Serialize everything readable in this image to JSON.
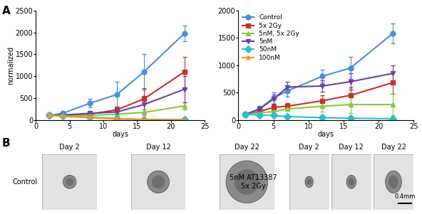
{
  "chart_data": [
    {
      "type": "line",
      "xlabel": "days",
      "ylabel": "normalized",
      "xlim": [
        0,
        25
      ],
      "xticks": [
        0,
        5,
        10,
        15,
        20,
        25
      ],
      "ylim": [
        0,
        2500
      ],
      "yticks": [
        0,
        500,
        1000,
        1500,
        2000,
        2500
      ],
      "series": [
        {
          "name": "Control",
          "color": "#4a90d9",
          "marker": "circle",
          "x": [
            2,
            4,
            8,
            12,
            16,
            22
          ],
          "values": [
            100,
            150,
            380,
            580,
            1100,
            1980
          ],
          "errors": [
            20,
            40,
            100,
            300,
            400,
            180
          ]
        },
        {
          "name": "5x 2Gy",
          "color": "#c9302c",
          "marker": "square",
          "x": [
            2,
            4,
            8,
            12,
            16,
            22
          ],
          "values": [
            100,
            110,
            130,
            230,
            480,
            1100
          ],
          "errors": [
            10,
            20,
            30,
            80,
            250,
            350
          ]
        },
        {
          "name": "5nM, 5x 2Gy",
          "color": "#8cc63f",
          "marker": "triangle_up",
          "x": [
            2,
            4,
            8,
            12,
            16,
            22
          ],
          "values": [
            100,
            100,
            100,
            130,
            170,
            320
          ],
          "errors": [
            10,
            15,
            20,
            30,
            60,
            80
          ]
        },
        {
          "name": "5nM",
          "color": "#6a3fa0",
          "marker": "triangle_down",
          "x": [
            2,
            4,
            8,
            12,
            16,
            22
          ],
          "values": [
            100,
            110,
            150,
            180,
            350,
            700
          ],
          "errors": [
            10,
            20,
            40,
            60,
            200,
            300
          ]
        },
        {
          "name": "50nM",
          "color": "#2bbfd0",
          "marker": "diamond",
          "x": [
            2,
            4,
            8,
            12,
            16,
            22
          ],
          "values": [
            100,
            90,
            60,
            30,
            10,
            5
          ],
          "errors": [
            10,
            10,
            10,
            10,
            5,
            5
          ]
        },
        {
          "name": "100nM",
          "color": "#f7941d",
          "marker": "star",
          "x": [
            2,
            4,
            8,
            12,
            16,
            22
          ],
          "values": [
            100,
            80,
            50,
            20,
            5,
            0
          ],
          "errors": [
            10,
            10,
            10,
            5,
            5,
            0
          ]
        }
      ]
    },
    {
      "type": "line",
      "xlabel": "days",
      "legend": "upper left",
      "xlim": [
        0,
        25
      ],
      "xticks": [
        0,
        5,
        10,
        15,
        20,
        25
      ],
      "ylim": [
        0,
        2000
      ],
      "yticks": [
        0,
        500,
        1000,
        1500,
        2000
      ],
      "series": [
        {
          "name": "Control",
          "color": "#4a90d9",
          "marker": "circle",
          "x": [
            1,
            3,
            5,
            7,
            12,
            16,
            22
          ],
          "values": [
            100,
            200,
            400,
            530,
            800,
            950,
            1580
          ],
          "errors": [
            20,
            60,
            100,
            100,
            120,
            200,
            180
          ]
        },
        {
          "name": "5x 2Gy",
          "color": "#c9302c",
          "marker": "square",
          "x": [
            1,
            3,
            5,
            7,
            12,
            16,
            22
          ],
          "values": [
            100,
            150,
            230,
            250,
            350,
            450,
            680
          ],
          "errors": [
            10,
            30,
            50,
            60,
            100,
            150,
            200
          ]
        },
        {
          "name": "5nM, 5x 2Gy",
          "color": "#8cc63f",
          "marker": "triangle_up",
          "x": [
            1,
            3,
            5,
            7,
            12,
            16,
            22
          ],
          "values": [
            100,
            130,
            150,
            200,
            250,
            280,
            280
          ],
          "errors": [
            10,
            20,
            30,
            40,
            100,
            150,
            200
          ]
        },
        {
          "name": "5nM",
          "color": "#6a3fa0",
          "marker": "triangle_down",
          "x": [
            1,
            3,
            5,
            7,
            12,
            16,
            22
          ],
          "values": [
            100,
            200,
            380,
            600,
            620,
            700,
            850
          ],
          "errors": [
            10,
            40,
            80,
            100,
            100,
            150,
            150
          ]
        },
        {
          "name": "50nM",
          "color": "#2bbfd0",
          "marker": "diamond",
          "x": [
            1,
            3,
            5,
            7,
            12,
            16,
            22
          ],
          "values": [
            100,
            90,
            80,
            60,
            40,
            30,
            20
          ],
          "errors": [
            10,
            10,
            10,
            10,
            10,
            10,
            10
          ]
        }
      ]
    }
  ],
  "panel_labels": [
    "A",
    "B"
  ],
  "images": {
    "groups": [
      {
        "label": "Control",
        "days": [
          "Day 2",
          "Day 12",
          "Day 22"
        ]
      },
      {
        "label": "5nM AT13387\n5x 2Gy",
        "days": [
          "Day 2",
          "Day 12",
          "Day 22"
        ]
      }
    ],
    "scale_bar": "0.4mm"
  }
}
